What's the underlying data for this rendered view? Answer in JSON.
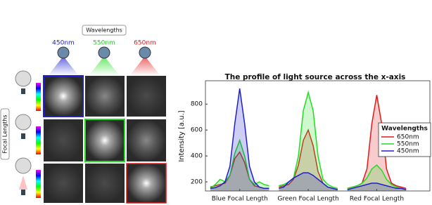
{
  "panel": {
    "wavelengths_label": "Wavelengths",
    "wavelengths": [
      {
        "text": "450nm",
        "color": "#2020d0"
      },
      {
        "text": "550nm",
        "color": "#22cc22"
      },
      {
        "text": "650nm",
        "color": "#e0191b"
      }
    ],
    "focal_label": "Focal Lengths"
  },
  "chart_data": {
    "type": "line",
    "fill": true,
    "title": "The profile of light source across the x-axis",
    "ylabel": "Intensity [a.u.]",
    "x": [
      0,
      1,
      2,
      3,
      4,
      5,
      6,
      7,
      8,
      9,
      10,
      11,
      12,
      13,
      14,
      15,
      16,
      17,
      18,
      19,
      20,
      21,
      22,
      23,
      24,
      25,
      26,
      27,
      28,
      29,
      30,
      31,
      32,
      33,
      34,
      35,
      36,
      37,
      38,
      39,
      40
    ],
    "xlim": [
      -1,
      45
    ],
    "xticks": [
      {
        "value": 6,
        "label": "Blue Focal Length"
      },
      {
        "value": 20,
        "label": "Green Focal Length"
      },
      {
        "value": 34,
        "label": "Red Focal Length"
      }
    ],
    "ylim": [
      130,
      980
    ],
    "yticks": [
      200,
      400,
      600,
      800
    ],
    "legend_title": "Wavelengths",
    "legend": "right",
    "series": [
      {
        "name": "650nm",
        "color": "#e0191b",
        "values": [
          160,
          170,
          180,
          190,
          250,
          380,
          430,
          350,
          220,
          170,
          160,
          150,
          150,
          null,
          160,
          170,
          180,
          220,
          330,
          520,
          600,
          480,
          280,
          190,
          160,
          150,
          140,
          null,
          150,
          160,
          170,
          190,
          300,
          650,
          870,
          650,
          300,
          190,
          170,
          160,
          150
        ]
      },
      {
        "name": "550nm",
        "color": "#22dd22",
        "values": [
          150,
          180,
          220,
          200,
          250,
          420,
          520,
          400,
          220,
          180,
          200,
          180,
          170,
          null,
          170,
          180,
          200,
          230,
          400,
          750,
          890,
          750,
          400,
          220,
          180,
          160,
          150,
          null,
          150,
          160,
          170,
          190,
          230,
          300,
          330,
          290,
          220,
          180,
          160,
          150,
          140
        ]
      },
      {
        "name": "450nm",
        "color": "#1f1fcc",
        "values": [
          150,
          155,
          170,
          200,
          320,
          650,
          920,
          650,
          320,
          200,
          160,
          150,
          150,
          null,
          150,
          160,
          200,
          230,
          250,
          270,
          270,
          250,
          220,
          190,
          160,
          150,
          140,
          null,
          140,
          150,
          160,
          170,
          180,
          190,
          190,
          180,
          170,
          160,
          150,
          150,
          140
        ]
      }
    ]
  }
}
